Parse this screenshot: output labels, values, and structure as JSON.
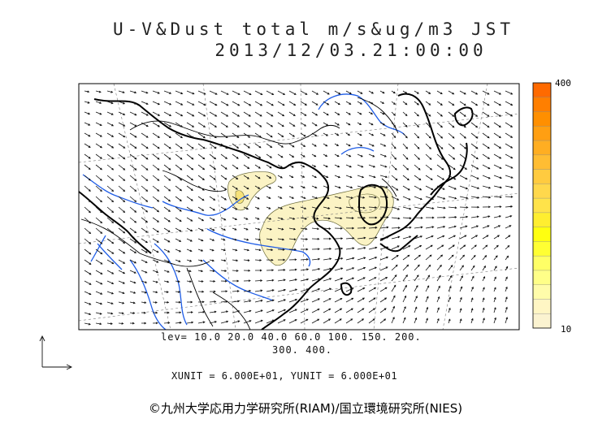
{
  "title": {
    "line1": "U-V&Dust total m/s&ug/m3 JST",
    "line2": "2013/12/03.21:00:00"
  },
  "map": {
    "region": "East Asia",
    "variables": [
      "wind vectors (U-V)",
      "dust total concentration"
    ],
    "colors": {
      "coast": "#000000",
      "rivers": "#1e5ce6",
      "borders": "#000000",
      "dust_light": "#fbf3c4",
      "contour": "#6b6b3a",
      "arrows": "#111111"
    }
  },
  "colorbar": {
    "max_label": "400",
    "min_label": "10",
    "colors": [
      "#ff6a00",
      "#ff7f00",
      "#ff8f00",
      "#ff9f12",
      "#ffae22",
      "#ffbd33",
      "#ffcb40",
      "#ffd84c",
      "#ffe34a",
      "#ffee30",
      "#ffff10",
      "#ffff33",
      "#ffff66",
      "#ffff88",
      "#fffcaa",
      "#fff6c4",
      "#fbf3d0"
    ]
  },
  "lev": {
    "line1": "lev= 10.0 20.0 40.0 60.0 100. 150. 200.",
    "line2": "300. 400."
  },
  "units": {
    "line": "XUNIT = 6.000E+01, YUNIT = 6.000E+01"
  },
  "credit": "©九州大学応用力学研究所(RIAM)/国立環境研究所(NIES)"
}
